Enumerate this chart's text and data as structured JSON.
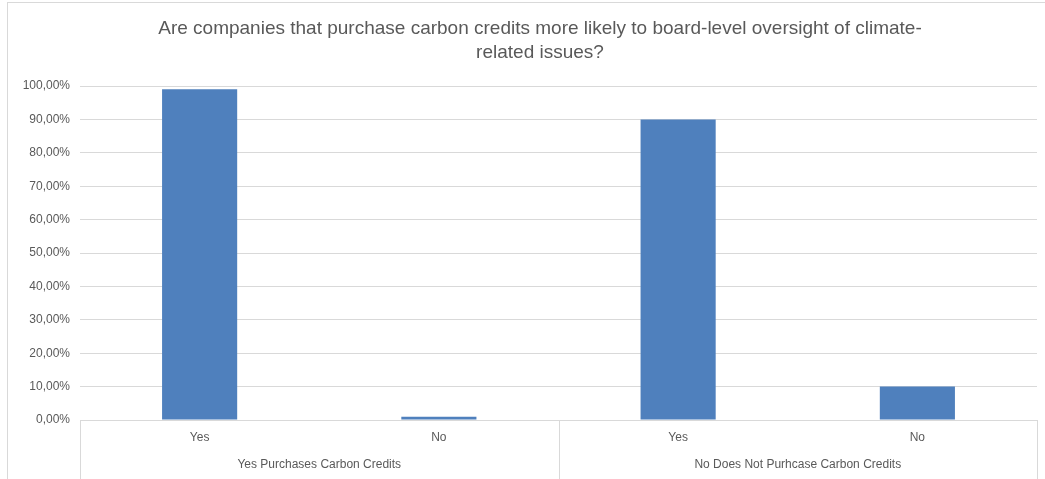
{
  "chart_data": {
    "type": "bar",
    "title": "Are companies that purchase carbon credits more likely to board-level oversight of climate-related issues?",
    "categories": [
      "Yes",
      "No",
      "Yes",
      "No"
    ],
    "values": [
      99,
      1,
      90,
      10
    ],
    "color": "#4f80bd",
    "ylim": [
      0,
      100
    ],
    "yticks": [
      {
        "value": 0,
        "label": "0,00%"
      },
      {
        "value": 10,
        "label": "10,00%"
      },
      {
        "value": 20,
        "label": "20,00%"
      },
      {
        "value": 30,
        "label": "30,00%"
      },
      {
        "value": 40,
        "label": "40,00%"
      },
      {
        "value": 50,
        "label": "50,00%"
      },
      {
        "value": 60,
        "label": "60,00%"
      },
      {
        "value": 70,
        "label": "70,00%"
      },
      {
        "value": 80,
        "label": "80,00%"
      },
      {
        "value": 90,
        "label": "90,00%"
      },
      {
        "value": 100,
        "label": "100,00%"
      }
    ],
    "grid": "y",
    "annotations": [
      "Yes Purchases Carbon Credits",
      "No Does Not Purhcase Carbon Credits"
    ]
  }
}
